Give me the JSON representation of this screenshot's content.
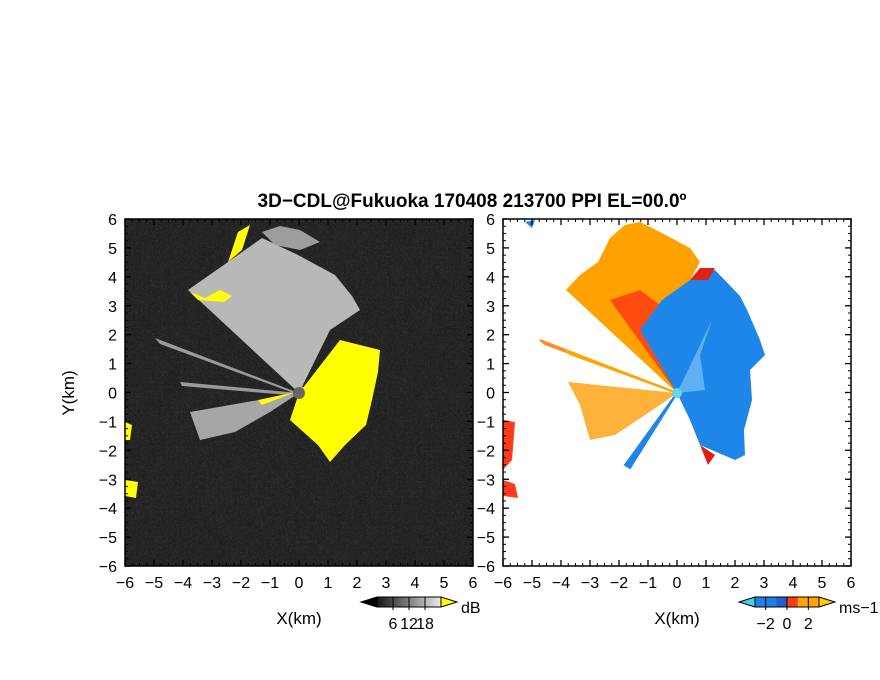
{
  "title": "3D−CDL@Fukuoka 170408 213700 PPI EL=00.0º",
  "chart_data": [
    {
      "type": "heatmap",
      "panel": "left",
      "quantity": "backscatter intensity",
      "xlabel": "X(km)",
      "ylabel": "Y(km)",
      "xlim": [
        -6,
        6
      ],
      "ylim": [
        -6,
        6
      ],
      "xticks": [
        "−6",
        "−5",
        "−4",
        "−3",
        "−2",
        "−1",
        "0",
        "1",
        "2",
        "3",
        "4",
        "5",
        "6"
      ],
      "yticks": [
        "6",
        "5",
        "4",
        "3",
        "2",
        "1",
        "0",
        "−1",
        "−2",
        "−3",
        "−4",
        "−5",
        "−6"
      ],
      "colorbar": {
        "unit": "dB",
        "ticks": [
          "6",
          "12",
          "18"
        ],
        "range": [
          0,
          24
        ],
        "saturation_color": "#ffff00"
      },
      "colors": {
        "background": "#222222",
        "saturated": "#ffff00",
        "radar_site": "#666666"
      }
    },
    {
      "type": "heatmap",
      "panel": "right",
      "quantity": "Doppler velocity",
      "xlabel": "X(km)",
      "xlim": [
        -6,
        6
      ],
      "ylim": [
        -6,
        6
      ],
      "xticks": [
        "−6",
        "−5",
        "−4",
        "−3",
        "−2",
        "−1",
        "0",
        "1",
        "2",
        "3",
        "4",
        "5",
        "6"
      ],
      "yticks": [
        "6",
        "5",
        "4",
        "3",
        "2",
        "1",
        "0",
        "−1",
        "−2",
        "−3",
        "−4",
        "−5",
        "−6"
      ],
      "colorbar": {
        "unit": "ms−1",
        "ticks": [
          "−2",
          "0",
          "2"
        ],
        "range": [
          -3,
          3
        ]
      },
      "colors": {
        "negative": "#1f7fe6",
        "near_zero": "#ff3a1a",
        "positive": "#ffa500",
        "background": "#ffffff"
      }
    }
  ]
}
